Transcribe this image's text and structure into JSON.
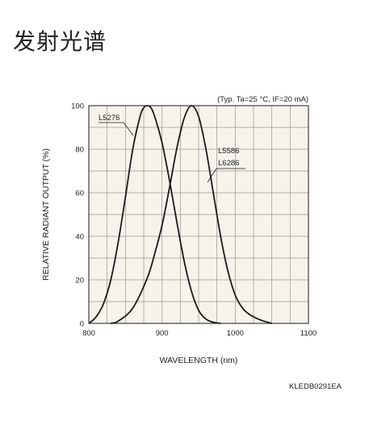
{
  "page": {
    "title": "发射光谱",
    "figure_code": "KLEDB0291EA"
  },
  "chart_data": {
    "type": "line",
    "note": "(Typ. Ta=25 °C, IF=20 mA)",
    "xlabel": "WAVELENGTH (nm)",
    "ylabel": "RELATIVE RADIANT OUTPUT (%)",
    "xlim": [
      800,
      1100
    ],
    "ylim": [
      0,
      100
    ],
    "xticks": [
      800,
      900,
      1000,
      1100
    ],
    "yticks": [
      0,
      20,
      40,
      60,
      80,
      100
    ],
    "grid": true,
    "background": "#f5f3ec",
    "line_color": "#1a1a1a",
    "series": [
      {
        "name": "L5276",
        "x": [
          800,
          810,
          820,
          830,
          840,
          850,
          860,
          870,
          875,
          880,
          885,
          890,
          900,
          910,
          920,
          930,
          940,
          950,
          960,
          970,
          980
        ],
        "y": [
          0,
          3,
          9,
          20,
          37,
          58,
          80,
          95,
          99,
          100,
          99,
          95,
          83,
          66,
          47,
          29,
          15,
          6,
          2,
          0.5,
          0
        ]
      },
      {
        "name": "L5586 / L6286",
        "x": [
          830,
          840,
          860,
          880,
          890,
          900,
          910,
          920,
          930,
          940,
          950,
          960,
          970,
          980,
          990,
          1000,
          1010,
          1020,
          1035,
          1050
        ],
        "y": [
          0,
          1,
          7,
          21,
          32,
          45,
          62,
          80,
          94,
          100,
          95,
          80,
          60,
          40,
          24,
          13,
          7,
          4,
          1.5,
          0
        ]
      }
    ],
    "series_labels": [
      "L5276",
      "L5586",
      "L6286"
    ]
  }
}
